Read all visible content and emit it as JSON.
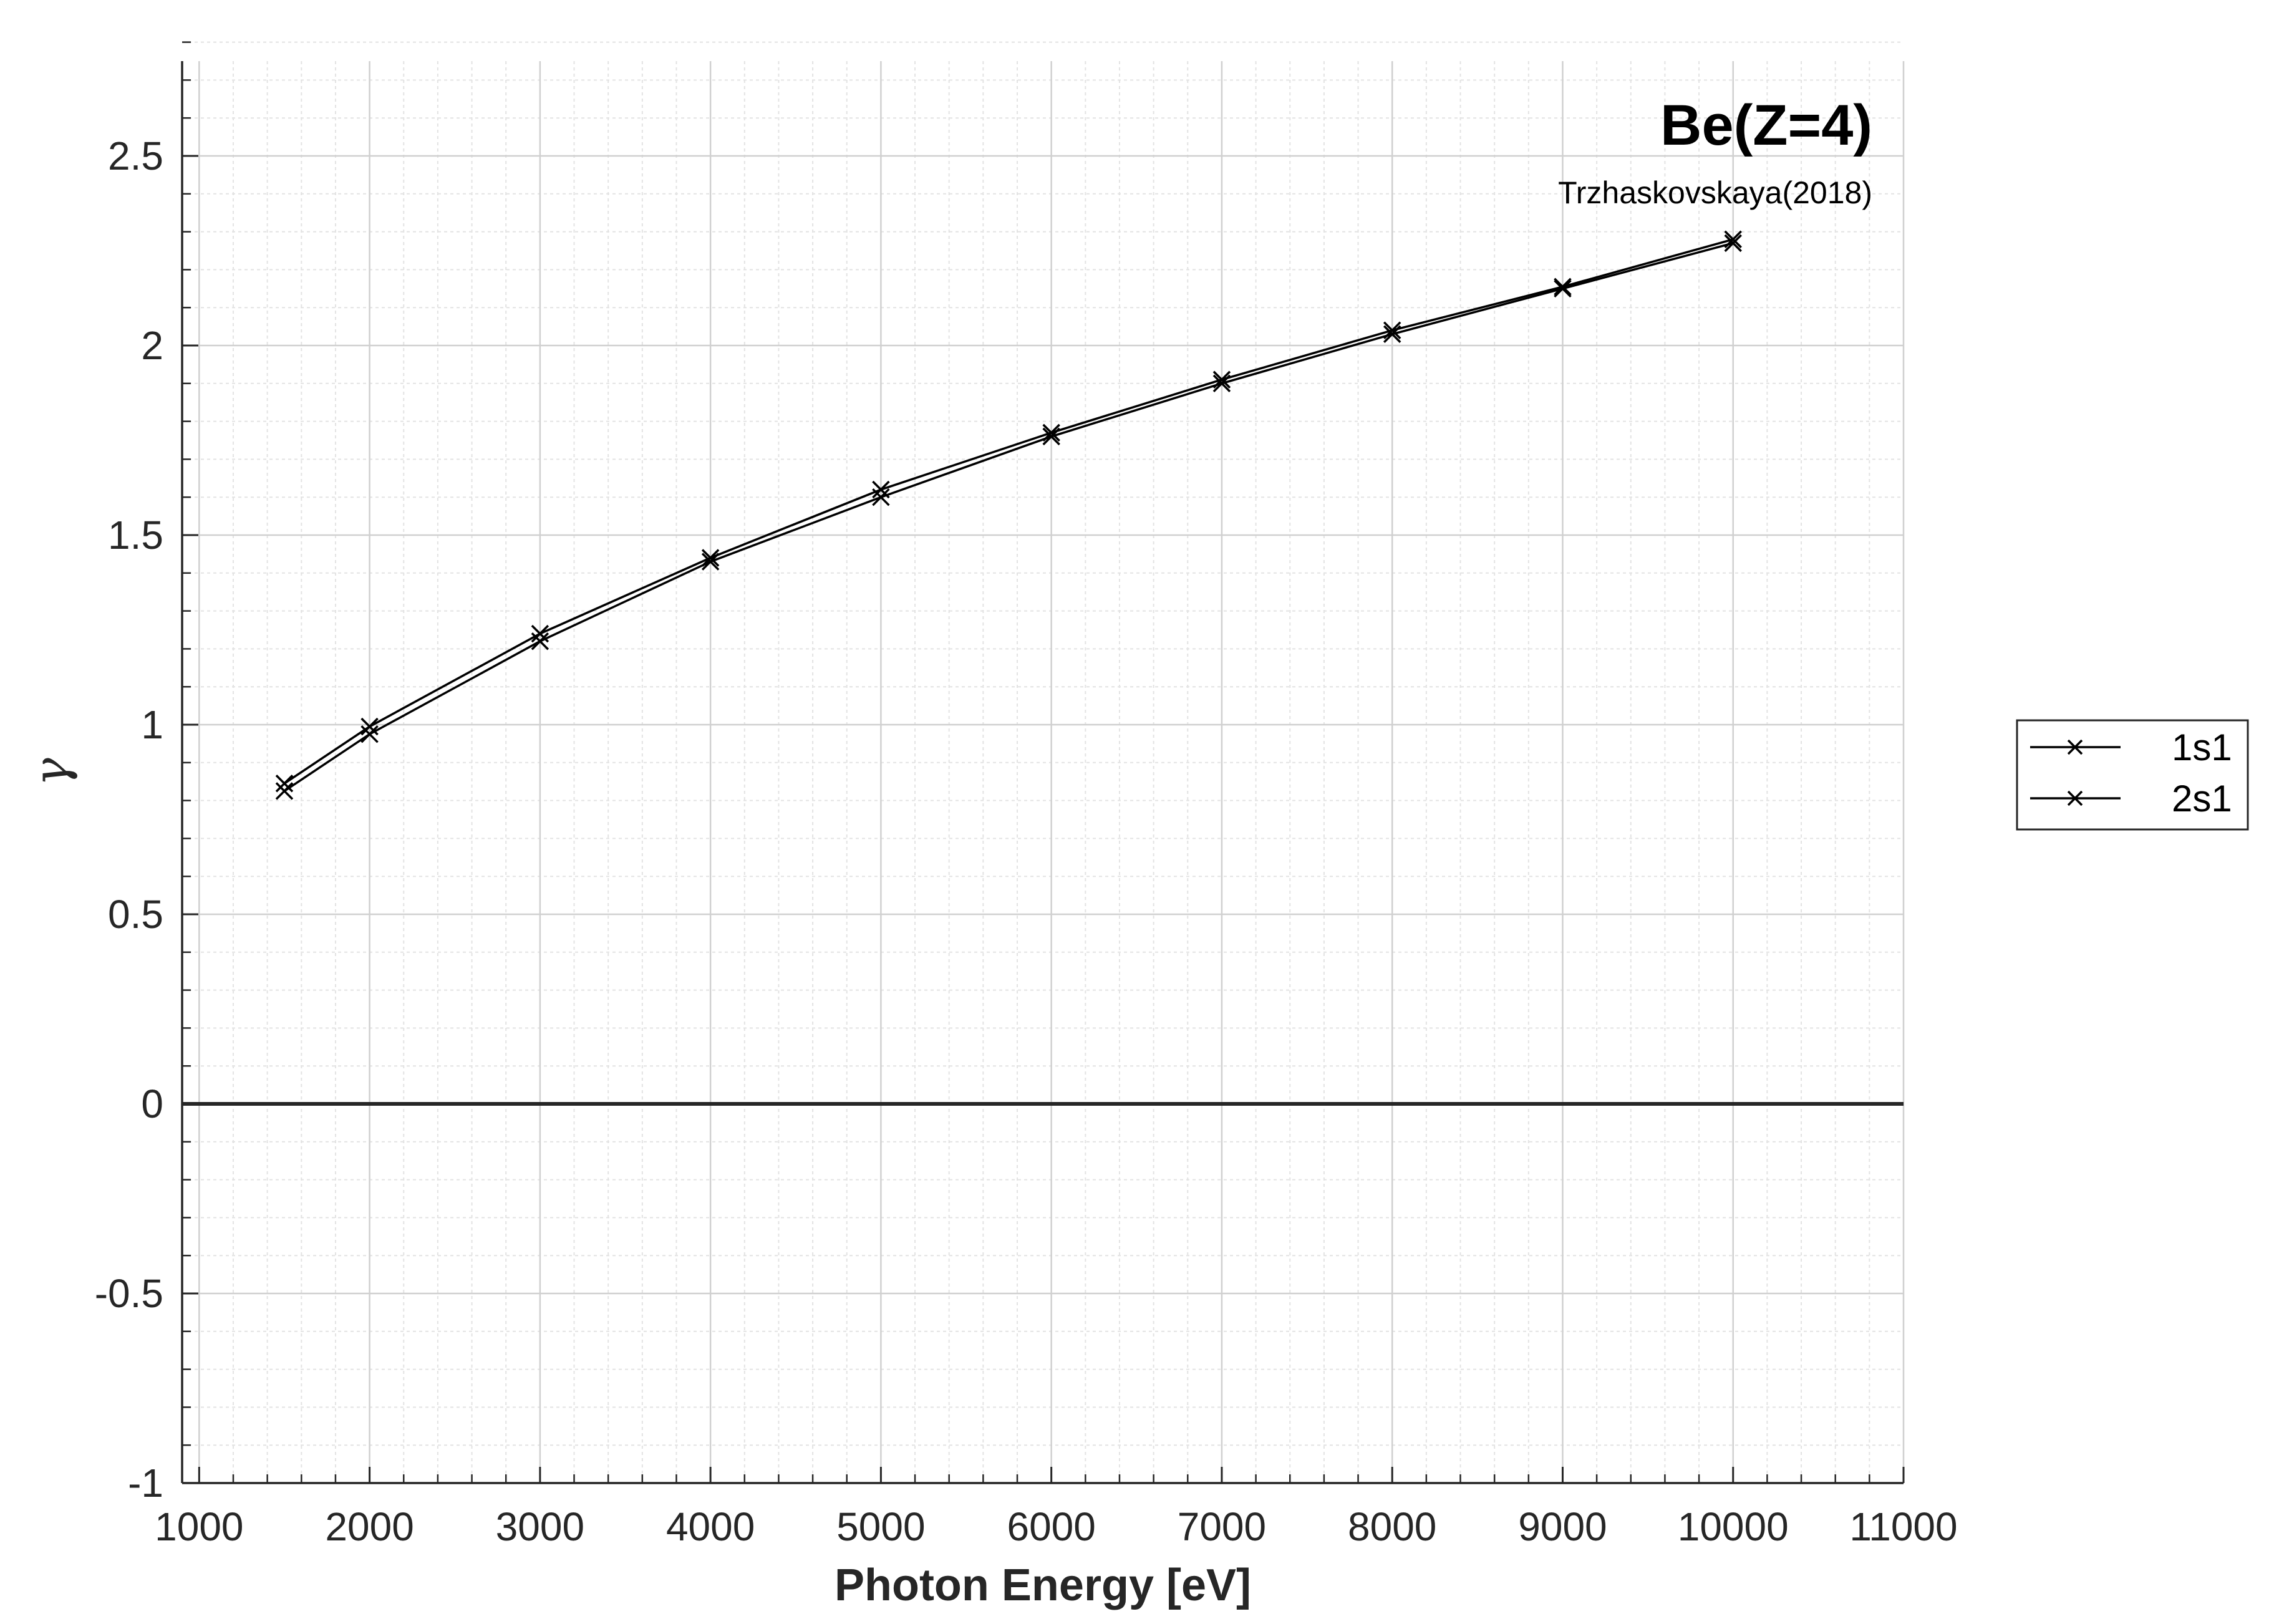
{
  "chart_data": {
    "type": "line",
    "xlabel": "Photon Energy [eV]",
    "ylabel": "γ",
    "xlim": [
      900,
      11000
    ],
    "ylim": [
      -1,
      2.75
    ],
    "x_ticks": [
      1000,
      2000,
      3000,
      4000,
      5000,
      6000,
      7000,
      8000,
      9000,
      10000,
      11000
    ],
    "y_ticks": [
      -1,
      -0.5,
      0,
      0.5,
      1,
      1.5,
      2,
      2.5
    ],
    "x_tick_labels": [
      "1000",
      "2000",
      "3000",
      "4000",
      "5000",
      "6000",
      "7000",
      "8000",
      "9000",
      "10000",
      "11000"
    ],
    "y_tick_labels": [
      "-1",
      "-0.5",
      "0",
      "0.5",
      "1",
      "1.5",
      "2",
      "2.5"
    ],
    "grid": true,
    "minor_grid": true,
    "zero_line": true,
    "legend_position": "outside-right",
    "annotations": {
      "title": "Be(Z=4)",
      "subtitle": "Trzhaskovskaya(2018)"
    },
    "line_color": "#000000",
    "marker": "x",
    "x": [
      1500,
      2000,
      3000,
      4000,
      5000,
      6000,
      7000,
      8000,
      9000,
      10000
    ],
    "series": [
      {
        "name": "1s1",
        "values": [
          0.845,
          0.995,
          1.24,
          1.44,
          1.62,
          1.77,
          1.91,
          2.04,
          2.155,
          2.28
        ]
      },
      {
        "name": "2s1",
        "values": [
          0.825,
          0.975,
          1.22,
          1.43,
          1.6,
          1.76,
          1.9,
          2.03,
          2.15,
          2.27
        ]
      }
    ]
  }
}
